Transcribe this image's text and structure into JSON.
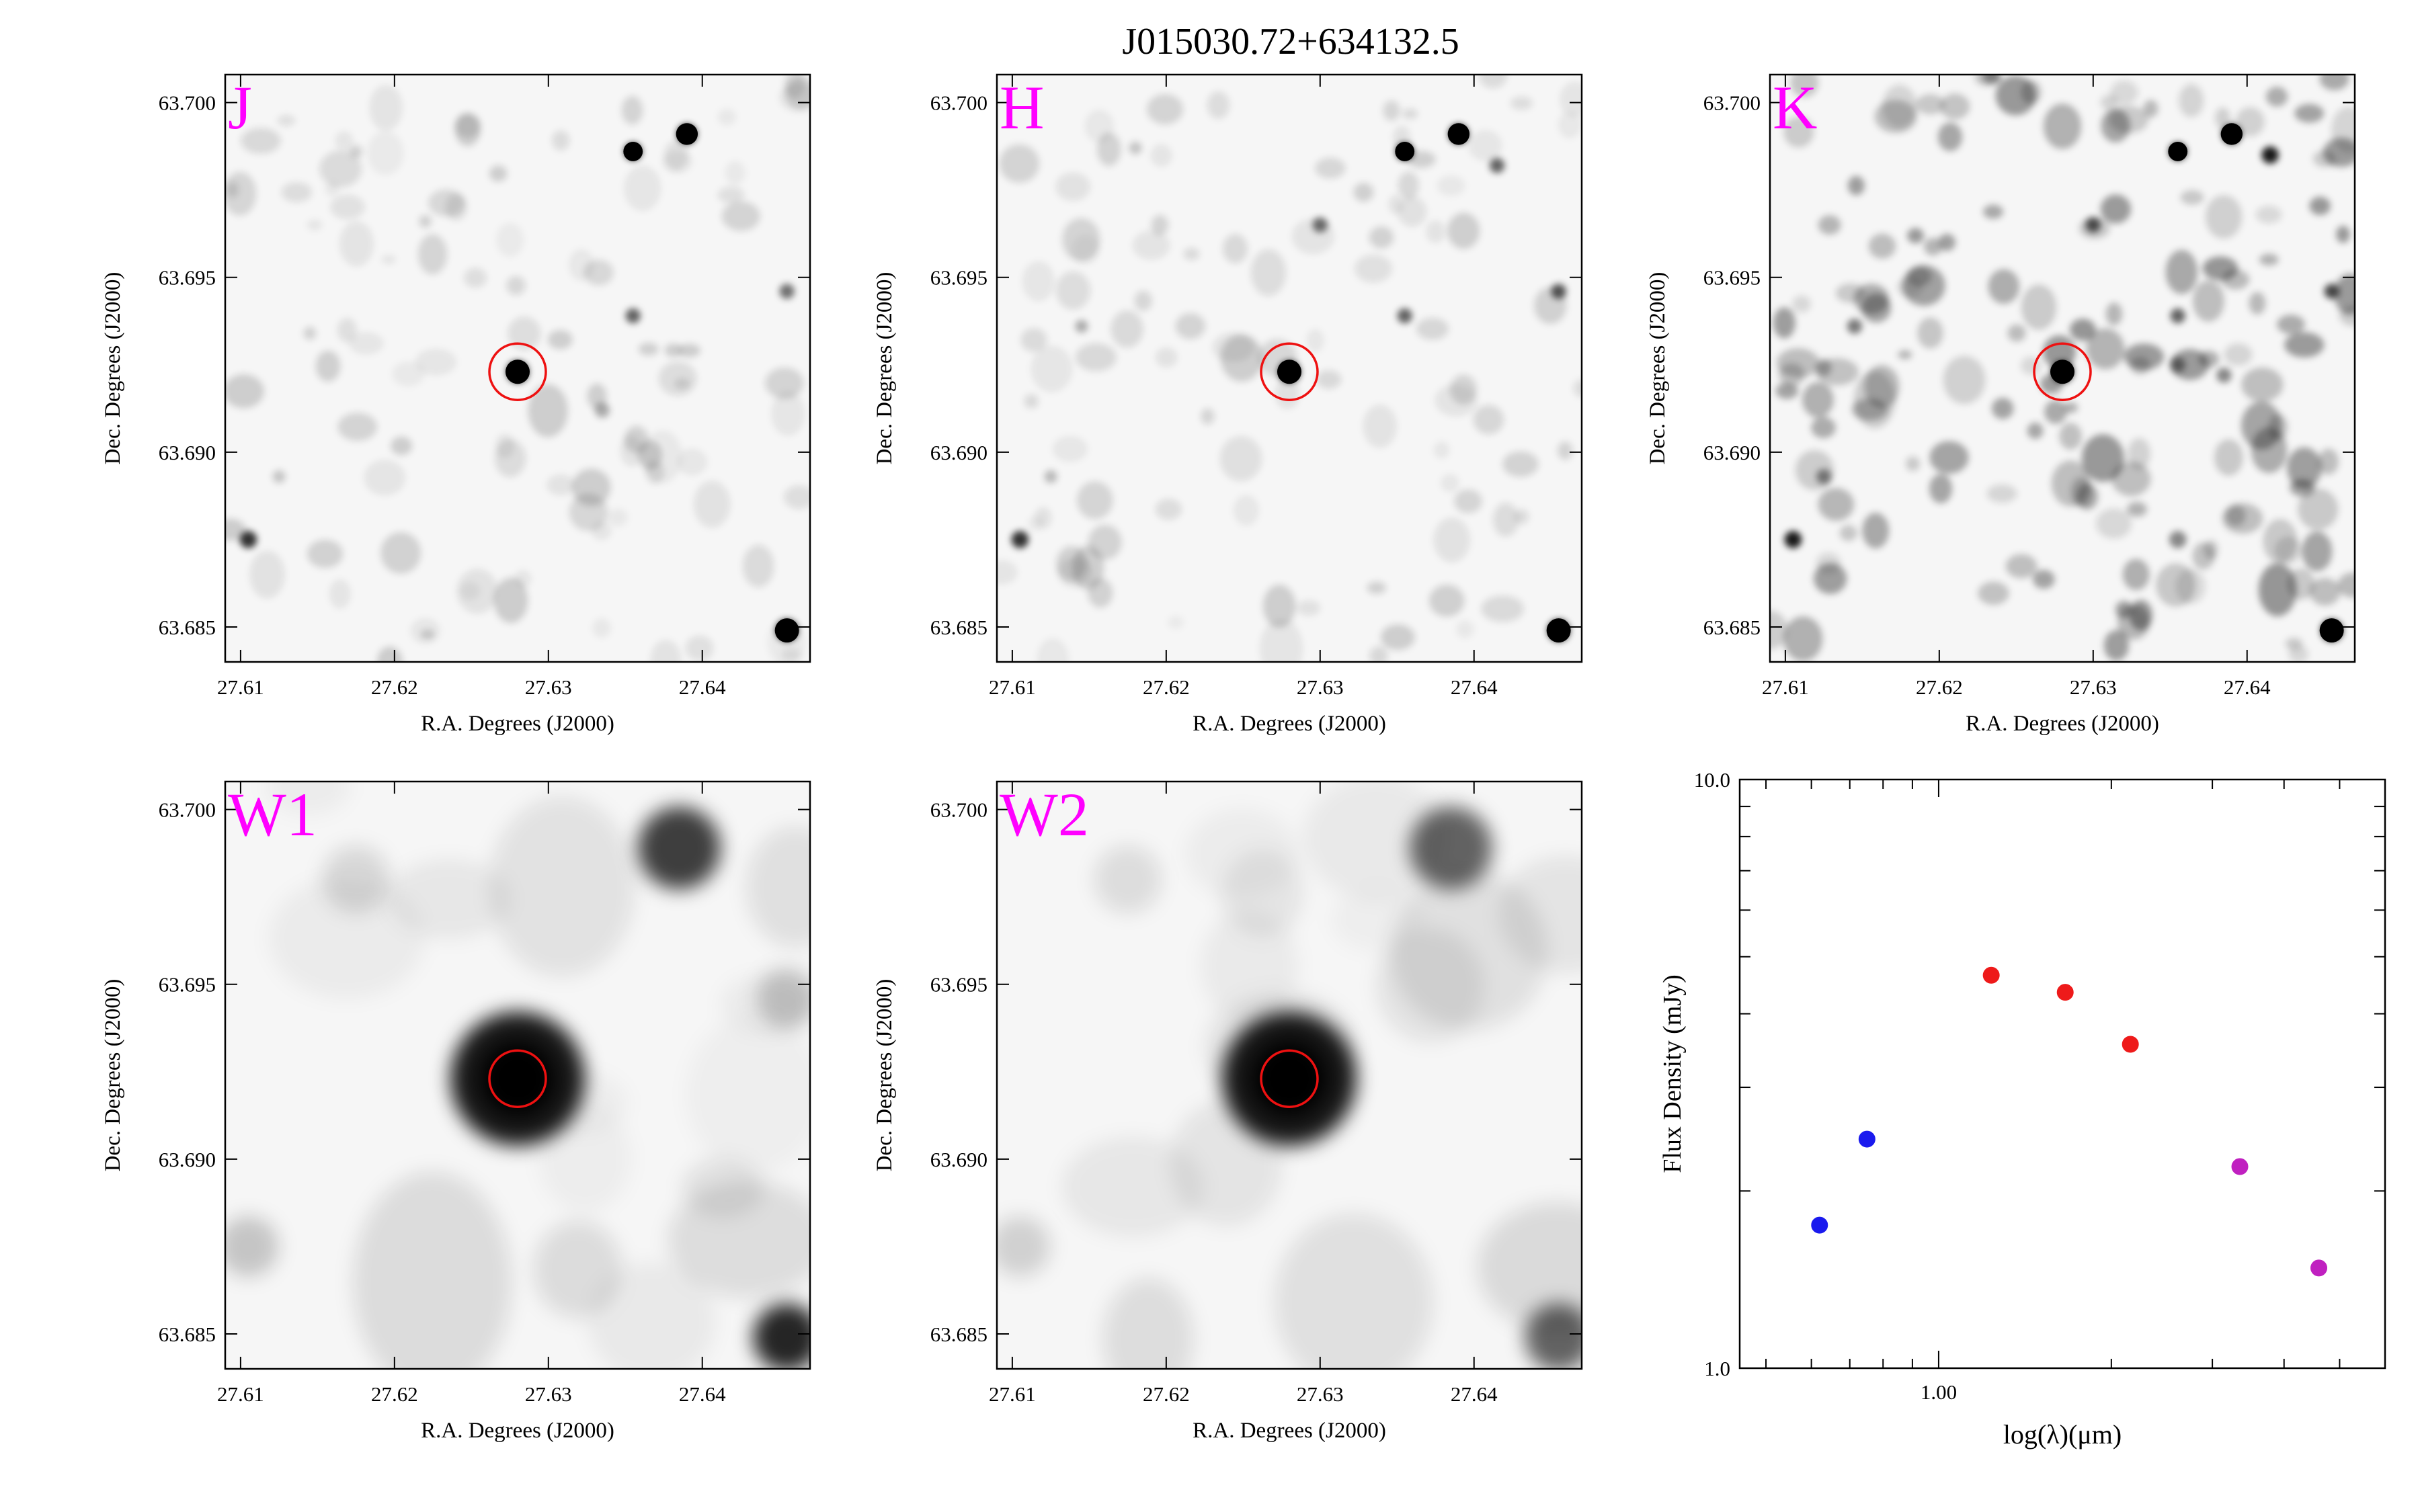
{
  "figure": {
    "title": "J015030.72+634132.5"
  },
  "colors": {
    "band_label": "#ff00ff",
    "aperture_circle": "#ee1111",
    "axes": "#000000",
    "sed_optical": "#1a1aee",
    "sed_2mass": "#ee1a1a",
    "sed_wise": "#c020c0"
  },
  "chart_data": [
    {
      "type": "image",
      "band_label": "J",
      "xlabel": "R.A. Degrees (J2000)",
      "ylabel": "Dec. Degrees (J2000)",
      "xlim": [
        27.609,
        27.647
      ],
      "ylim": [
        63.684,
        63.7008
      ],
      "xticks": [
        "27.61",
        "27.62",
        "27.63",
        "27.64"
      ],
      "yticks": [
        "63.685",
        "63.690",
        "63.695",
        "63.700"
      ],
      "target": {
        "ra": 27.628,
        "dec": 63.6923
      },
      "sources": [
        {
          "ra": 27.628,
          "dec": 63.6923,
          "mag": 1.0,
          "size": 1.0
        },
        {
          "ra": 27.6355,
          "dec": 63.6986,
          "mag": 0.95,
          "size": 0.8
        },
        {
          "ra": 27.639,
          "dec": 63.6991,
          "mag": 1.0,
          "size": 0.9
        },
        {
          "ra": 27.6455,
          "dec": 63.6849,
          "mag": 1.0,
          "size": 1.0
        },
        {
          "ra": 27.6105,
          "dec": 63.6875,
          "mag": 0.8,
          "size": 0.8
        },
        {
          "ra": 27.6355,
          "dec": 63.6939,
          "mag": 0.6,
          "size": 0.7
        },
        {
          "ra": 27.6455,
          "dec": 63.6946,
          "mag": 0.55,
          "size": 0.7
        },
        {
          "ra": 27.6335,
          "dec": 63.6912,
          "mag": 0.3,
          "size": 0.7
        },
        {
          "ra": 27.622,
          "dec": 63.6966,
          "mag": 0.15,
          "size": 0.6
        },
        {
          "ra": 27.6125,
          "dec": 63.6893,
          "mag": 0.2,
          "size": 0.6
        },
        {
          "ra": 27.6145,
          "dec": 63.6934,
          "mag": 0.15,
          "size": 0.6
        },
        {
          "ra": 27.6175,
          "dec": 63.6986,
          "mag": 0.15,
          "size": 0.6
        }
      ]
    },
    {
      "type": "image",
      "band_label": "H",
      "xlabel": "R.A. Degrees (J2000)",
      "ylabel": "Dec. Degrees (J2000)",
      "xlim": [
        27.609,
        27.647
      ],
      "ylim": [
        63.684,
        63.7008
      ],
      "xticks": [
        "27.61",
        "27.62",
        "27.63",
        "27.64"
      ],
      "yticks": [
        "63.685",
        "63.690",
        "63.695",
        "63.700"
      ],
      "target": {
        "ra": 27.628,
        "dec": 63.6923
      },
      "sources": [
        {
          "ra": 27.628,
          "dec": 63.6923,
          "mag": 1.0,
          "size": 1.0
        },
        {
          "ra": 27.6355,
          "dec": 63.6986,
          "mag": 1.0,
          "size": 0.8
        },
        {
          "ra": 27.639,
          "dec": 63.6991,
          "mag": 1.0,
          "size": 0.9
        },
        {
          "ra": 27.6415,
          "dec": 63.6982,
          "mag": 0.6,
          "size": 0.7
        },
        {
          "ra": 27.6455,
          "dec": 63.6849,
          "mag": 1.0,
          "size": 1.0
        },
        {
          "ra": 27.6105,
          "dec": 63.6875,
          "mag": 0.8,
          "size": 0.8
        },
        {
          "ra": 27.6355,
          "dec": 63.6939,
          "mag": 0.6,
          "size": 0.7
        },
        {
          "ra": 27.6455,
          "dec": 63.6946,
          "mag": 0.65,
          "size": 0.7
        },
        {
          "ra": 27.63,
          "dec": 63.6965,
          "mag": 0.55,
          "size": 0.7
        },
        {
          "ra": 27.6145,
          "dec": 63.6936,
          "mag": 0.3,
          "size": 0.6
        },
        {
          "ra": 27.6125,
          "dec": 63.6893,
          "mag": 0.25,
          "size": 0.6
        },
        {
          "ra": 27.618,
          "dec": 63.6987,
          "mag": 0.2,
          "size": 0.6
        }
      ]
    },
    {
      "type": "image",
      "band_label": "K",
      "xlabel": "R.A. Degrees (J2000)",
      "ylabel": "Dec. Degrees (J2000)",
      "xlim": [
        27.609,
        27.647
      ],
      "ylim": [
        63.684,
        63.7008
      ],
      "xticks": [
        "27.61",
        "27.62",
        "27.63",
        "27.64"
      ],
      "yticks": [
        "63.685",
        "63.690",
        "63.695",
        "63.700"
      ],
      "target": {
        "ra": 27.628,
        "dec": 63.6923
      },
      "sources": [
        {
          "ra": 27.628,
          "dec": 63.6923,
          "mag": 1.0,
          "size": 1.0
        },
        {
          "ra": 27.6355,
          "dec": 63.6986,
          "mag": 1.0,
          "size": 0.8
        },
        {
          "ra": 27.639,
          "dec": 63.6991,
          "mag": 1.0,
          "size": 0.9
        },
        {
          "ra": 27.6415,
          "dec": 63.6985,
          "mag": 0.9,
          "size": 0.8
        },
        {
          "ra": 27.6455,
          "dec": 63.6849,
          "mag": 1.0,
          "size": 1.0
        },
        {
          "ra": 27.6105,
          "dec": 63.6875,
          "mag": 0.9,
          "size": 0.8
        },
        {
          "ra": 27.6455,
          "dec": 63.6946,
          "mag": 0.7,
          "size": 0.7
        },
        {
          "ra": 27.63,
          "dec": 63.6965,
          "mag": 0.65,
          "size": 0.7
        },
        {
          "ra": 27.6355,
          "dec": 63.6939,
          "mag": 0.6,
          "size": 0.7
        },
        {
          "ra": 27.6355,
          "dec": 63.6925,
          "mag": 0.45,
          "size": 0.7
        },
        {
          "ra": 27.6145,
          "dec": 63.6936,
          "mag": 0.5,
          "size": 0.7
        },
        {
          "ra": 27.6125,
          "dec": 63.6893,
          "mag": 0.45,
          "size": 0.7
        },
        {
          "ra": 27.6205,
          "dec": 63.696,
          "mag": 0.35,
          "size": 0.8
        },
        {
          "ra": 27.6385,
          "dec": 63.6922,
          "mag": 0.45,
          "size": 0.7
        },
        {
          "ra": 27.6355,
          "dec": 63.6875,
          "mag": 0.45,
          "size": 0.8
        },
        {
          "ra": 27.632,
          "dec": 63.6855,
          "mag": 0.35,
          "size": 0.8
        }
      ]
    },
    {
      "type": "image",
      "band_label": "W1",
      "xlabel": "R.A. Degrees (J2000)",
      "ylabel": "Dec. Degrees (J2000)",
      "xlim": [
        27.609,
        27.647
      ],
      "ylim": [
        63.684,
        63.7008
      ],
      "xticks": [
        "27.61",
        "27.62",
        "27.63",
        "27.64"
      ],
      "yticks": [
        "63.685",
        "63.690",
        "63.695",
        "63.700"
      ],
      "target": {
        "ra": 27.628,
        "dec": 63.6923
      },
      "sources": [
        {
          "ra": 27.628,
          "dec": 63.6923,
          "mag": 1.0,
          "size": 2.0
        },
        {
          "ra": 27.6385,
          "dec": 63.6989,
          "mag": 0.75,
          "size": 2.2
        },
        {
          "ra": 27.6455,
          "dec": 63.6849,
          "mag": 0.85,
          "size": 1.8
        },
        {
          "ra": 27.6105,
          "dec": 63.6875,
          "mag": 0.2,
          "size": 1.6
        },
        {
          "ra": 27.6455,
          "dec": 63.6946,
          "mag": 0.2,
          "size": 1.6
        },
        {
          "ra": 27.6175,
          "dec": 63.698,
          "mag": 0.12,
          "size": 1.8
        }
      ]
    },
    {
      "type": "image",
      "band_label": "W2",
      "xlabel": "R.A. Degrees (J2000)",
      "ylabel": "Dec. Degrees (J2000)",
      "xlim": [
        27.609,
        27.647
      ],
      "ylim": [
        63.684,
        63.7008
      ],
      "xticks": [
        "27.61",
        "27.62",
        "27.63",
        "27.64"
      ],
      "yticks": [
        "63.685",
        "63.690",
        "63.695",
        "63.700"
      ],
      "target": {
        "ra": 27.628,
        "dec": 63.6923
      },
      "sources": [
        {
          "ra": 27.628,
          "dec": 63.6923,
          "mag": 1.0,
          "size": 2.0
        },
        {
          "ra": 27.6385,
          "dec": 63.6989,
          "mag": 0.6,
          "size": 2.2
        },
        {
          "ra": 27.6455,
          "dec": 63.6849,
          "mag": 0.6,
          "size": 1.8
        },
        {
          "ra": 27.6105,
          "dec": 63.6875,
          "mag": 0.15,
          "size": 1.6
        },
        {
          "ra": 27.6175,
          "dec": 63.698,
          "mag": 0.1,
          "size": 1.8
        }
      ]
    },
    {
      "type": "scatter",
      "xlabel": "log(λ)(μm)",
      "ylabel": "Flux Density (mJy)",
      "xscale": "log",
      "yscale": "log",
      "xlim": [
        0.45,
        6.0
      ],
      "ylim": [
        1.0,
        10.0
      ],
      "xtick_labels": [
        {
          "value": 1.0,
          "label": "1.00"
        }
      ],
      "ytick_labels": [
        {
          "value": 1.0,
          "label": "1.0"
        },
        {
          "value": 10.0,
          "label": "10.0"
        }
      ],
      "series": [
        {
          "color_key": "sed_optical",
          "x": [
            0.62,
            0.75
          ],
          "y": [
            1.75,
            2.45
          ]
        },
        {
          "color_key": "sed_2mass",
          "x": [
            1.235,
            1.662,
            2.159
          ],
          "y": [
            4.65,
            4.35,
            3.55
          ]
        },
        {
          "color_key": "sed_wise",
          "x": [
            3.35,
            4.6
          ],
          "y": [
            2.2,
            1.48
          ]
        }
      ]
    }
  ]
}
